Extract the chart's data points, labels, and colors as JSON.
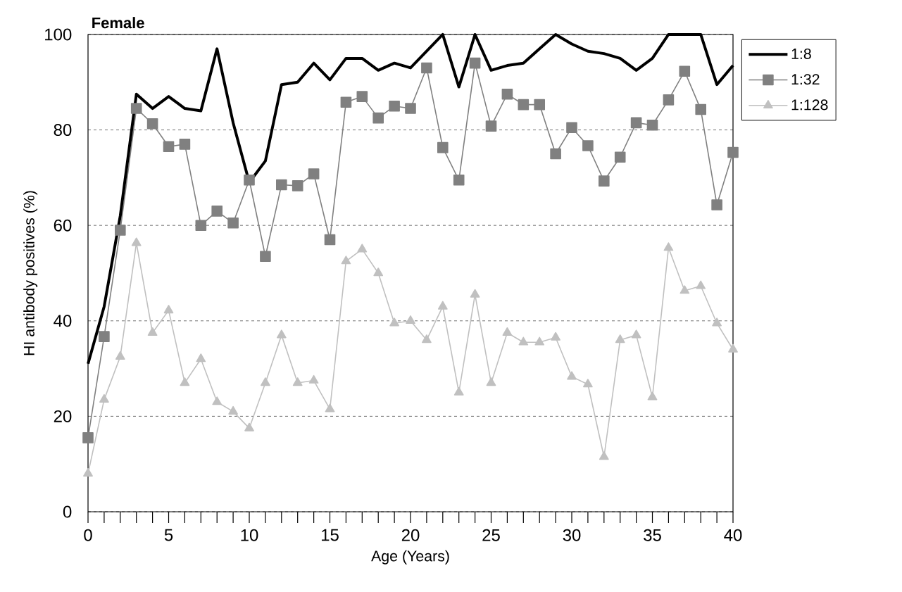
{
  "chart_data": {
    "type": "line",
    "title": "Female",
    "xlabel": "Age (Years)",
    "ylabel": "HI antibody positives (%)",
    "x": [
      0,
      1,
      2,
      3,
      4,
      5,
      6,
      7,
      8,
      9,
      10,
      11,
      12,
      13,
      14,
      15,
      16,
      17,
      18,
      19,
      20,
      21,
      22,
      23,
      24,
      25,
      26,
      27,
      28,
      29,
      30,
      31,
      32,
      33,
      34,
      35,
      36,
      37,
      38,
      39,
      40
    ],
    "series": [
      {
        "name": "1:8",
        "color": "#000000",
        "marker": "none",
        "values": [
          31,
          43,
          62,
          87.5,
          84.5,
          87,
          84.5,
          84,
          97,
          81.5,
          69,
          73.5,
          89.5,
          90,
          94,
          90.5,
          95,
          95,
          92.5,
          94,
          93,
          96.5,
          100,
          89,
          100,
          92.5,
          93.5,
          94,
          97,
          100,
          98,
          96.5,
          96,
          95,
          92.5,
          95,
          100,
          100,
          100,
          89.5,
          93.5
        ]
      },
      {
        "name": "1:32",
        "color": "#808080",
        "marker": "square",
        "values": [
          15.5,
          36.7,
          59,
          84.5,
          81.3,
          76.5,
          77,
          60,
          63,
          60.5,
          69.5,
          53.5,
          68.5,
          68.3,
          70.8,
          57,
          85.8,
          87,
          82.5,
          85,
          84.5,
          93,
          76.3,
          69.5,
          94,
          80.8,
          87.5,
          85.3,
          85.3,
          75,
          80.5,
          76.7,
          69.3,
          74.3,
          81.5,
          81,
          86.3,
          92.3,
          84.3,
          64.3,
          75.3
        ]
      },
      {
        "name": "1:128",
        "color": "#c0c0c0",
        "marker": "triangle",
        "values": [
          8,
          23.5,
          32.5,
          56.3,
          37.5,
          42.2,
          27,
          32,
          23,
          21,
          17.5,
          27,
          37,
          27,
          27.5,
          21.5,
          52.5,
          55,
          50,
          39.5,
          40,
          36,
          43,
          25,
          45.5,
          27,
          37.5,
          35.5,
          35.5,
          36.5,
          28.3,
          26.7,
          11.5,
          36,
          37,
          24,
          55.3,
          46.3,
          47.3,
          39.5,
          34
        ]
      }
    ],
    "xlim": [
      0,
      40
    ],
    "ylim": [
      0,
      100
    ],
    "xticks": [
      0,
      {
        "value": 1,
        "label": null
      },
      {
        "value": 2,
        "label": null
      },
      {
        "value": 3,
        "label": null
      },
      {
        "value": 4,
        "label": null
      },
      5,
      {
        "value": 6,
        "label": null
      },
      {
        "value": 7,
        "label": null
      },
      {
        "value": 8,
        "label": null
      },
      {
        "value": 9,
        "label": null
      },
      10,
      {
        "value": 11,
        "label": null
      },
      {
        "value": 12,
        "label": null
      },
      {
        "value": 13,
        "label": null
      },
      {
        "value": 14,
        "label": null
      },
      15,
      {
        "value": 16,
        "label": null
      },
      {
        "value": 17,
        "label": null
      },
      {
        "value": 18,
        "label": null
      },
      {
        "value": 19,
        "label": null
      },
      20,
      {
        "value": 21,
        "label": null
      },
      {
        "value": 22,
        "label": null
      },
      {
        "value": 23,
        "label": null
      },
      {
        "value": 24,
        "label": null
      },
      25,
      {
        "value": 26,
        "label": null
      },
      {
        "value": 27,
        "label": null
      },
      {
        "value": 28,
        "label": null
      },
      {
        "value": 29,
        "label": null
      },
      30,
      {
        "value": 31,
        "label": null
      },
      {
        "value": 32,
        "label": null
      },
      {
        "value": 33,
        "label": null
      },
      {
        "value": 34,
        "label": null
      },
      35,
      {
        "value": 36,
        "label": null
      },
      {
        "value": 37,
        "label": null
      },
      {
        "value": 38,
        "label": null
      },
      {
        "value": 39,
        "label": null
      },
      40
    ],
    "yticks": [
      0,
      20,
      40,
      60,
      80,
      100
    ],
    "grid": "y",
    "legend": "top right"
  }
}
